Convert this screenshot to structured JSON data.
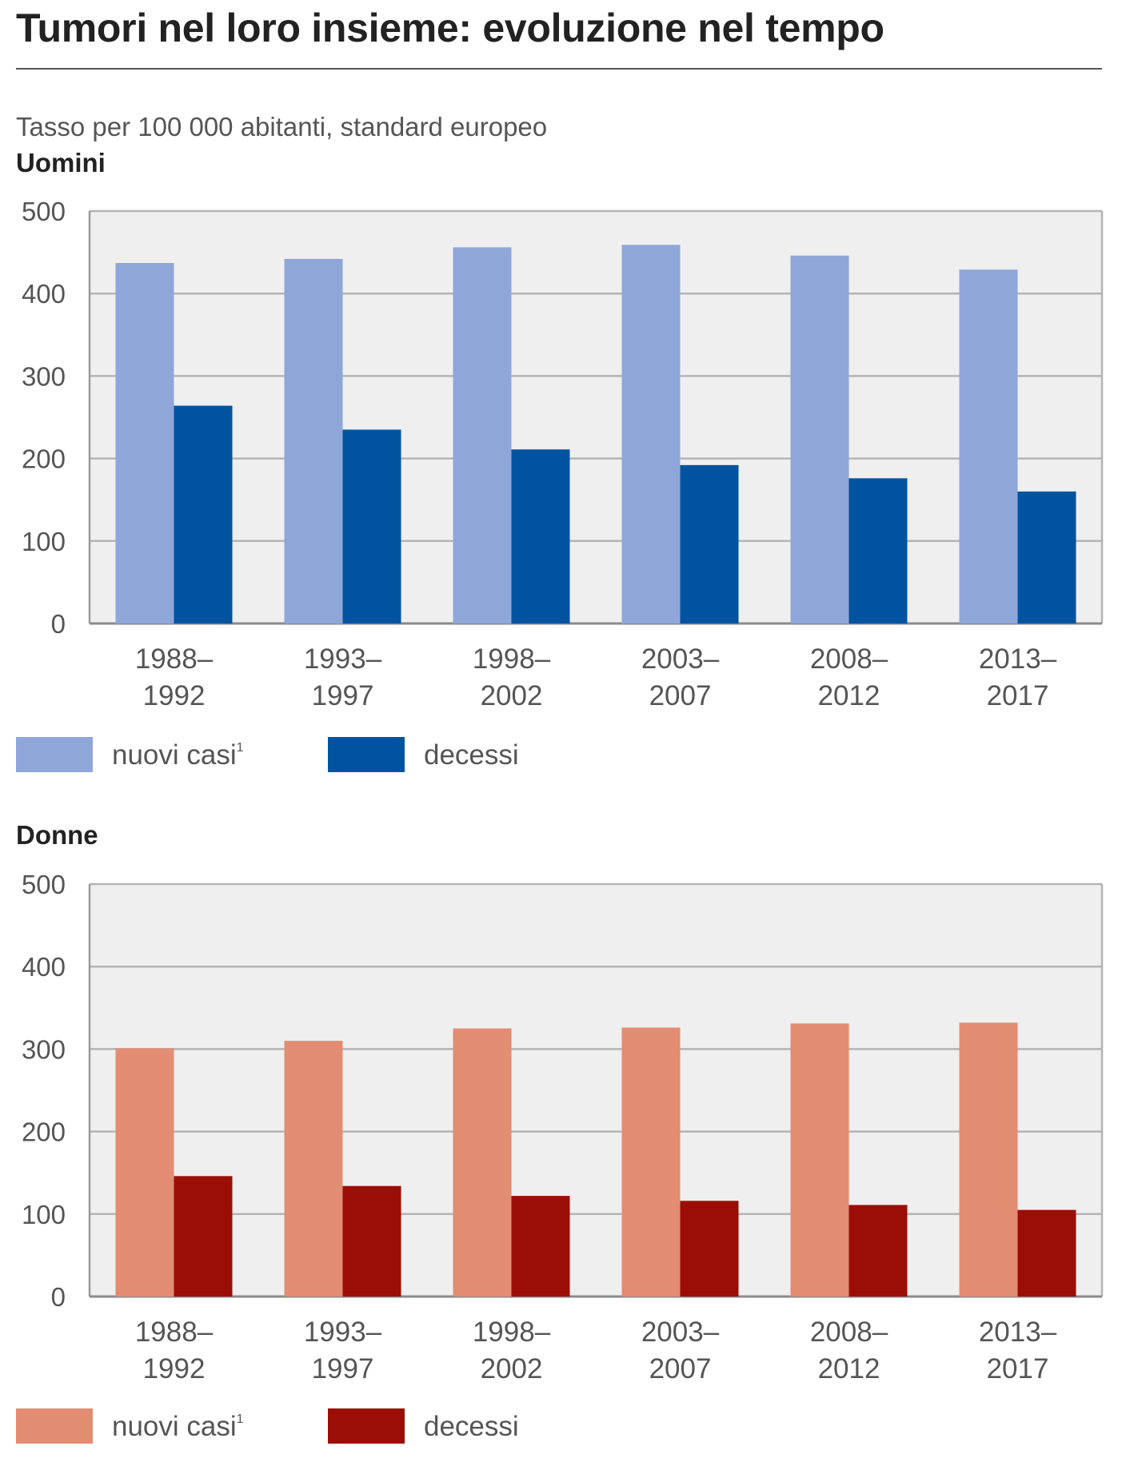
{
  "title": "Tumori nel loro insieme: evoluzione nel tempo",
  "subtitle": "Tasso per 100 000 abitanti, standard europeo",
  "chart_data": [
    {
      "type": "bar",
      "panel_label": "Uomini",
      "categories": [
        [
          "1988–",
          "1992"
        ],
        [
          "1993–",
          "1997"
        ],
        [
          "1998–",
          "2002"
        ],
        [
          "2003–",
          "2007"
        ],
        [
          "2008–",
          "2012"
        ],
        [
          "2013–",
          "2017"
        ]
      ],
      "ylim": [
        0,
        500
      ],
      "yticks": [
        0,
        100,
        200,
        300,
        400,
        500
      ],
      "grid": true,
      "legend_position": "bottom-left",
      "series": [
        {
          "name": "nuovi casi",
          "footnote": "1",
          "color": "#8fa6d9",
          "values": [
            437,
            442,
            456,
            459,
            446,
            429
          ]
        },
        {
          "name": "decessi",
          "color": "#00549f",
          "values": [
            264,
            235,
            211,
            192,
            176,
            160
          ]
        }
      ]
    },
    {
      "type": "bar",
      "panel_label": "Donne",
      "categories": [
        [
          "1988–",
          "1992"
        ],
        [
          "1993–",
          "1997"
        ],
        [
          "1998–",
          "2002"
        ],
        [
          "2003–",
          "2007"
        ],
        [
          "2008–",
          "2012"
        ],
        [
          "2013–",
          "2017"
        ]
      ],
      "ylim": [
        0,
        500
      ],
      "yticks": [
        0,
        100,
        200,
        300,
        400,
        500
      ],
      "grid": true,
      "legend_position": "bottom-left",
      "series": [
        {
          "name": "nuovi casi",
          "footnote": "1",
          "color": "#e28c72",
          "values": [
            301,
            310,
            325,
            326,
            331,
            332
          ]
        },
        {
          "name": "decessi",
          "color": "#9b0e06",
          "values": [
            146,
            134,
            122,
            116,
            111,
            105
          ]
        }
      ]
    }
  ]
}
